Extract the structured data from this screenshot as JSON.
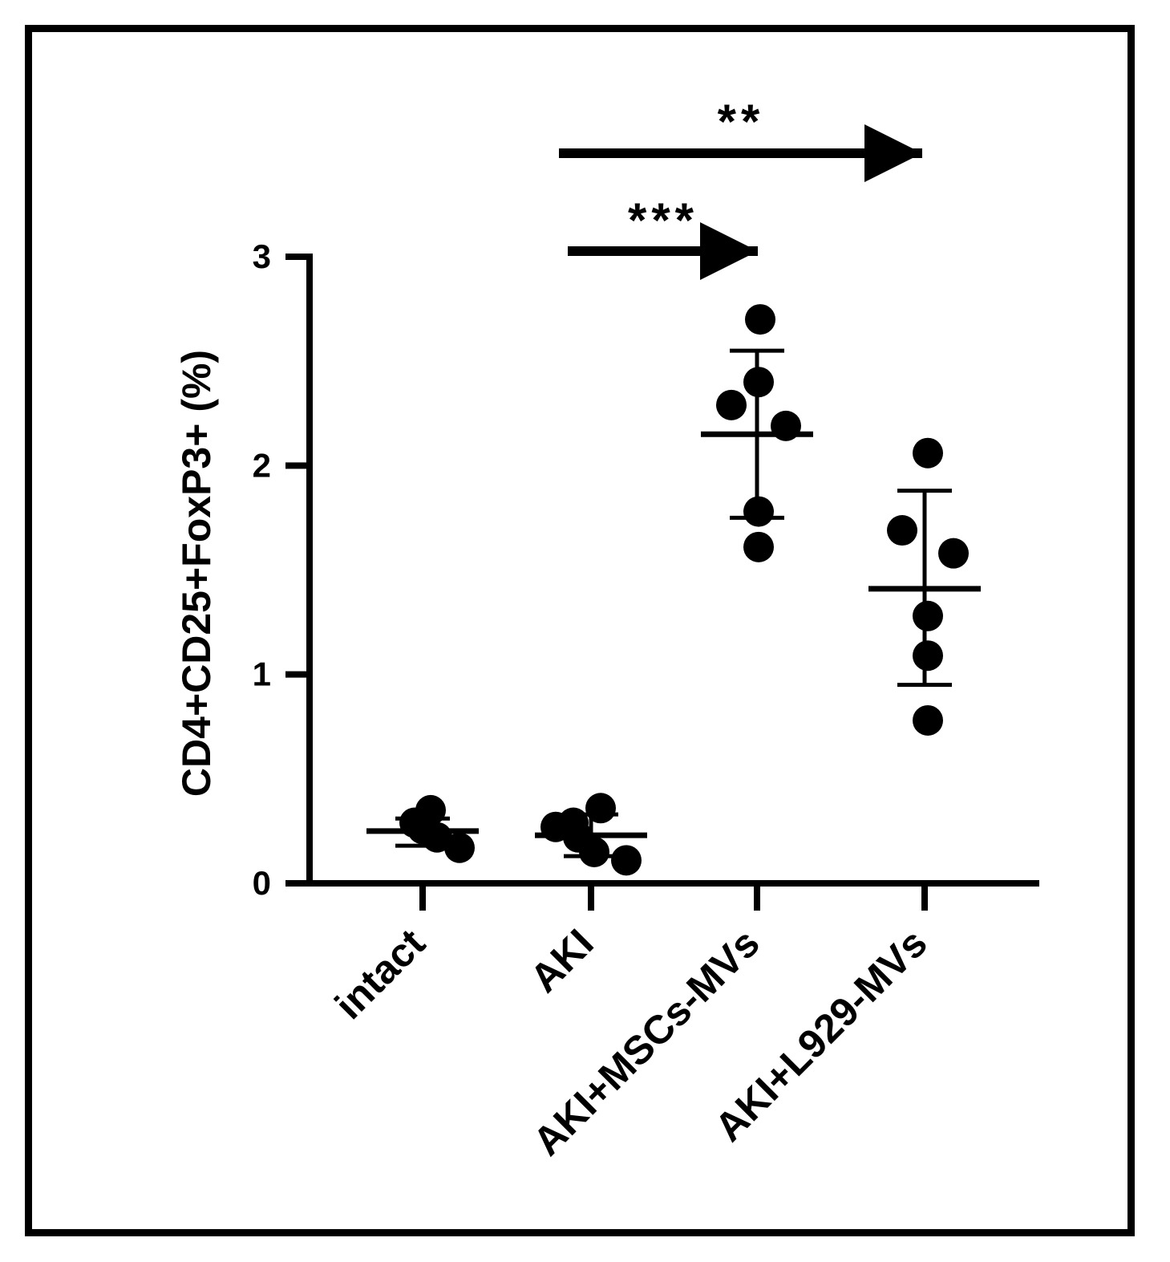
{
  "chart_data": {
    "type": "scatter",
    "ylabel": "CD4+CD25+FoxP3+ (%)",
    "xlabel": "",
    "ylim": [
      0,
      3
    ],
    "yticks": [
      "0",
      "1",
      "2",
      "3"
    ],
    "categories": [
      "intact",
      "AKI",
      "AKI+MSCs-MVs",
      "AKI+L929-MVs"
    ],
    "groups": [
      {
        "name": "intact",
        "points": [
          {
            "offset": -0.05,
            "y": 0.29
          },
          {
            "offset": 0.0,
            "y": 0.26
          },
          {
            "offset": 0.05,
            "y": 0.35
          },
          {
            "offset": 0.09,
            "y": 0.22
          },
          {
            "offset": 0.23,
            "y": 0.17
          }
        ],
        "mean": 0.25,
        "sd_low": 0.18,
        "sd_high": 0.31
      },
      {
        "name": "AKI",
        "points": [
          {
            "offset": -0.22,
            "y": 0.27
          },
          {
            "offset": -0.11,
            "y": 0.29
          },
          {
            "offset": -0.08,
            "y": 0.22
          },
          {
            "offset": 0.06,
            "y": 0.36
          },
          {
            "offset": 0.02,
            "y": 0.15
          },
          {
            "offset": 0.22,
            "y": 0.11
          }
        ],
        "mean": 0.23,
        "sd_low": 0.13,
        "sd_high": 0.33
      },
      {
        "name": "AKI+MSCs-MVs",
        "points": [
          {
            "offset": 0.02,
            "y": 2.7
          },
          {
            "offset": 0.01,
            "y": 2.4
          },
          {
            "offset": -0.16,
            "y": 2.29
          },
          {
            "offset": 0.18,
            "y": 2.19
          },
          {
            "offset": 0.01,
            "y": 1.78
          },
          {
            "offset": 0.01,
            "y": 1.61
          }
        ],
        "mean": 2.15,
        "sd_low": 1.75,
        "sd_high": 2.55
      },
      {
        "name": "AKI+L929-MVs",
        "points": [
          {
            "offset": 0.02,
            "y": 2.06
          },
          {
            "offset": -0.14,
            "y": 1.69
          },
          {
            "offset": 0.18,
            "y": 1.58
          },
          {
            "offset": 0.02,
            "y": 1.28
          },
          {
            "offset": 0.02,
            "y": 1.09
          },
          {
            "offset": 0.02,
            "y": 0.78
          }
        ],
        "mean": 1.41,
        "sd_low": 0.95,
        "sd_high": 1.88
      }
    ],
    "annotations": [
      {
        "text": "***",
        "from": "AKI",
        "to": "AKI+MSCs-MVs"
      },
      {
        "text": "**",
        "from": "AKI",
        "to": "AKI+L929-MVs"
      }
    ]
  }
}
